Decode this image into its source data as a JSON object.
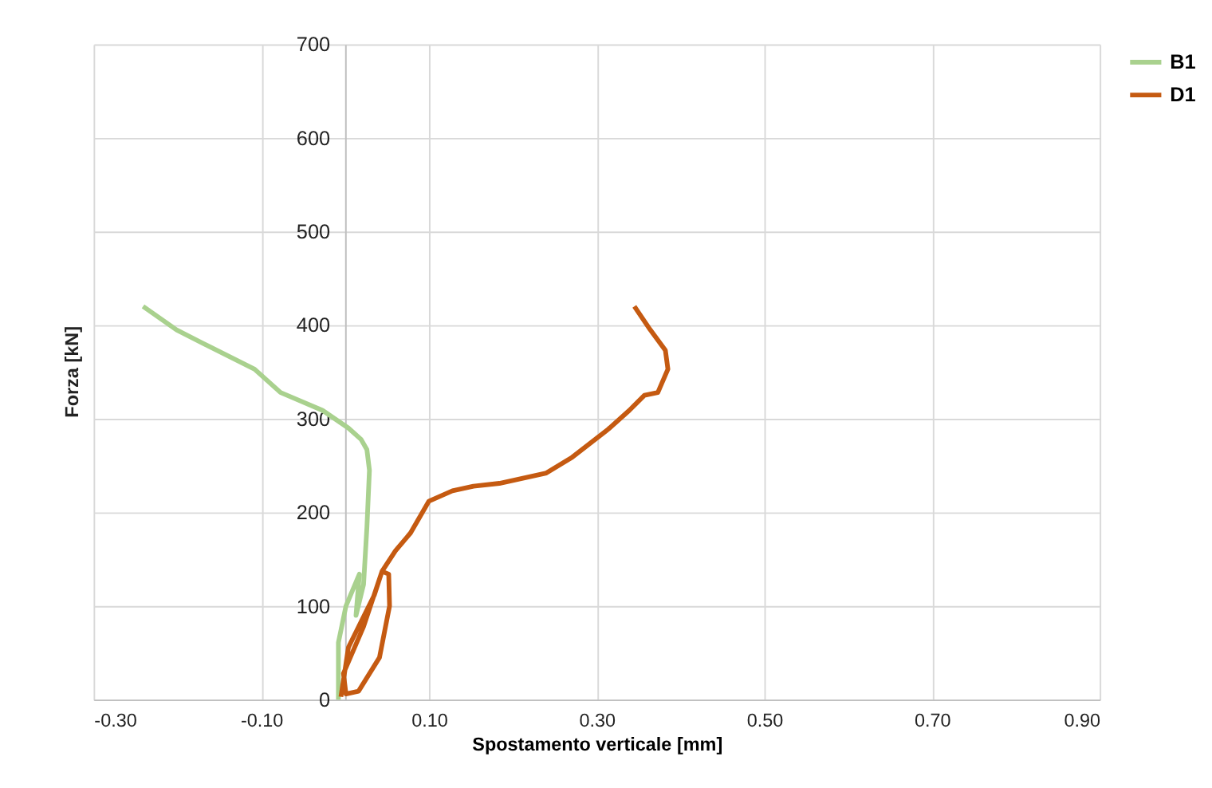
{
  "chart_data": {
    "type": "line",
    "xlabel": "Spostamento verticale [mm]",
    "ylabel": "Forza [kN]",
    "xlim": [
      -0.3,
      0.9
    ],
    "xticks": [
      {
        "value": -0.3,
        "label": "-0.30"
      },
      {
        "value": -0.1,
        "label": "-0.10"
      },
      {
        "value": 0.1,
        "label": "0.10"
      },
      {
        "value": 0.3,
        "label": "0.30"
      },
      {
        "value": 0.5,
        "label": "0.50"
      },
      {
        "value": 0.7,
        "label": "0.70"
      },
      {
        "value": 0.9,
        "label": "0.90"
      }
    ],
    "ylim": [
      0,
      700
    ],
    "yticks": [
      0,
      100,
      200,
      300,
      400,
      500,
      600,
      700
    ],
    "grid": true,
    "legend": "right",
    "marker": "none",
    "line_style": "solid",
    "series": [
      {
        "name": "B1",
        "color": "#a9d18e",
        "x": [
          -0.008,
          -0.008,
          0.001,
          0.017,
          0.013,
          0.022,
          0.026,
          0.029,
          0.026,
          0.019,
          0.004,
          -0.027,
          -0.077,
          -0.108,
          -0.164,
          -0.201,
          -0.241
        ],
        "values": [
          0,
          61,
          100,
          134,
          90,
          123,
          184,
          245,
          267,
          278,
          290,
          309,
          328,
          353,
          378,
          395,
          420
        ]
      },
      {
        "name": "D1",
        "color": "#c55a11",
        "x": [
          -0.005,
          0.004,
          0.035,
          0.044,
          0.052,
          0.053,
          0.041,
          0.016,
          0.001,
          -0.002,
          0.022,
          0.044,
          0.06,
          0.078,
          0.1,
          0.128,
          0.153,
          0.184,
          0.24,
          0.271,
          0.314,
          0.339,
          0.357,
          0.373,
          0.385,
          0.382,
          0.364,
          0.345
        ],
        "values": [
          3,
          56,
          112,
          137,
          134,
          100,
          45,
          9,
          6,
          28,
          78,
          137,
          159,
          178,
          212,
          223,
          228,
          231,
          242,
          259,
          289,
          309,
          325,
          328,
          353,
          373,
          395,
          420
        ]
      }
    ]
  }
}
